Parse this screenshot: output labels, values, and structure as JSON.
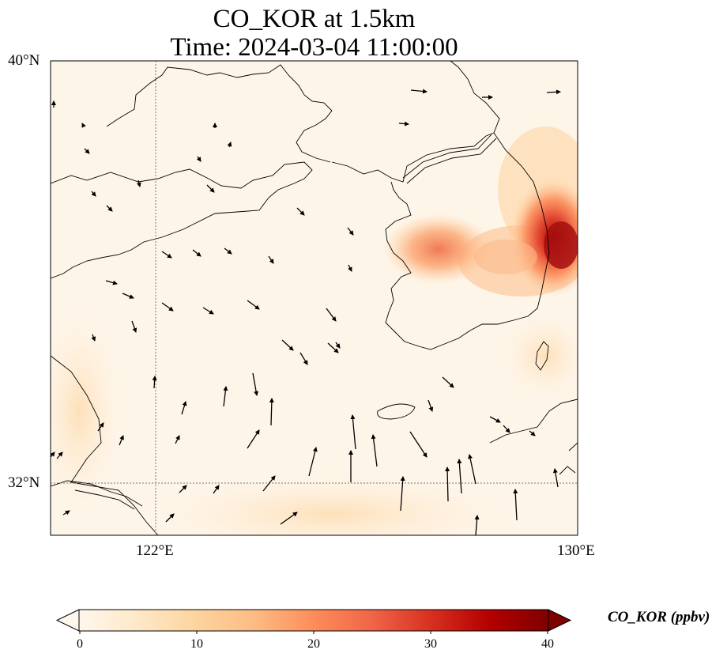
{
  "title": {
    "line1": "CO_KOR at 1.5km",
    "line2": "Time: 2024-03-04 11:00:00"
  },
  "axes": {
    "lat_ticks": [
      "40°N",
      "32°N"
    ],
    "lon_ticks": [
      "122°E",
      "130°E"
    ],
    "extent": {
      "lon_min": 120,
      "lon_max": 130,
      "lat_min": 31,
      "lat_max": 40
    },
    "gridlines": "dotted"
  },
  "colorbar": {
    "label": "CO_KOR (ppbv)",
    "ticks": [
      "0",
      "10",
      "20",
      "30",
      "40"
    ],
    "range": [
      0,
      40
    ],
    "extend": "both",
    "colormap": "OrRd",
    "colors": [
      "#fff7ec",
      "#fee8c8",
      "#fdd49e",
      "#fdbb84",
      "#fc8d59",
      "#ef6548",
      "#d7301f",
      "#b30000",
      "#7f0000"
    ]
  },
  "map": {
    "field": "CO_KOR",
    "level": "1.5km",
    "hotspots": [
      {
        "region": "eastern Korea coast",
        "lon": 129.6,
        "lat": 35.2,
        "value_ppbv": 40
      },
      {
        "region": "west-central Korea",
        "lon": 126.8,
        "lat": 35.3,
        "value_ppbv": 23
      }
    ],
    "wind_vectors": "present",
    "coastlines": "present"
  }
}
